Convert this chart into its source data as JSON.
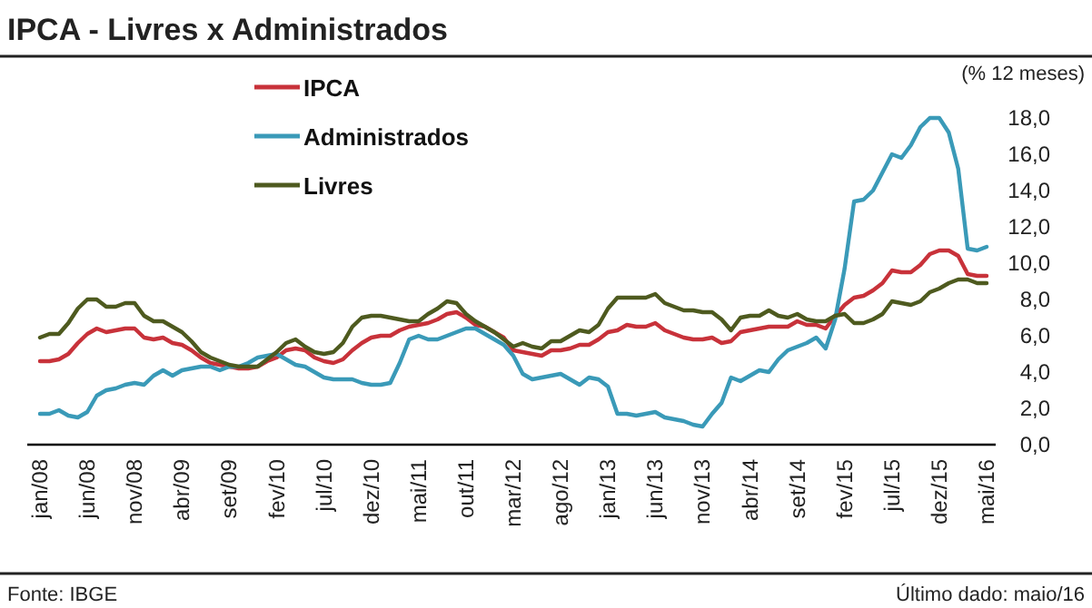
{
  "chart_data": {
    "type": "line",
    "title": "IPCA - Livres x Administrados",
    "ylabel": "(% 12 meses)",
    "annotations": [
      "Fonte: IBGE",
      "Último dado: maio/16"
    ],
    "categories": [
      "jan/08",
      null,
      null,
      null,
      null,
      "jun/08",
      null,
      null,
      null,
      null,
      "nov/08",
      null,
      null,
      null,
      null,
      "abr/09",
      null,
      null,
      null,
      null,
      "set/09",
      null,
      null,
      null,
      null,
      "fev/10",
      null,
      null,
      null,
      null,
      "jul/10",
      null,
      null,
      null,
      null,
      "dez/10",
      null,
      null,
      null,
      null,
      "mai/11",
      null,
      null,
      null,
      null,
      "out/11",
      null,
      null,
      null,
      null,
      "mar/12",
      null,
      null,
      null,
      null,
      "ago/12",
      null,
      null,
      null,
      null,
      "jan/13",
      null,
      null,
      null,
      null,
      "jun/13",
      null,
      null,
      null,
      null,
      "nov/13",
      null,
      null,
      null,
      null,
      "abr/14",
      null,
      null,
      null,
      null,
      "set/14",
      null,
      null,
      null,
      null,
      "fev/15",
      null,
      null,
      null,
      null,
      "jul/15",
      null,
      null,
      null,
      null,
      "dez/15",
      null,
      null,
      null,
      null,
      "mai/16"
    ],
    "series": [
      {
        "name": "IPCA",
        "color": "#c8323a",
        "values": [
          4.6,
          4.6,
          4.7,
          5.0,
          5.6,
          6.1,
          6.4,
          6.2,
          6.3,
          6.4,
          6.4,
          5.9,
          5.8,
          5.9,
          5.6,
          5.5,
          5.2,
          4.8,
          4.5,
          4.4,
          4.3,
          4.2,
          4.2,
          4.3,
          4.6,
          4.8,
          5.2,
          5.3,
          5.2,
          4.8,
          4.6,
          4.5,
          4.7,
          5.2,
          5.6,
          5.9,
          6.0,
          6.0,
          6.3,
          6.5,
          6.6,
          6.7,
          6.9,
          7.2,
          7.3,
          7.0,
          6.6,
          6.5,
          6.2,
          5.9,
          5.2,
          5.1,
          5.0,
          4.9,
          5.2,
          5.2,
          5.3,
          5.5,
          5.5,
          5.8,
          6.2,
          6.3,
          6.6,
          6.5,
          6.5,
          6.7,
          6.3,
          6.1,
          5.9,
          5.8,
          5.8,
          5.9,
          5.6,
          5.7,
          6.2,
          6.3,
          6.4,
          6.5,
          6.5,
          6.5,
          6.8,
          6.6,
          6.6,
          6.4,
          7.1,
          7.7,
          8.1,
          8.2,
          8.5,
          8.9,
          9.6,
          9.5,
          9.5,
          9.9,
          10.5,
          10.7,
          10.7,
          10.4,
          9.4,
          9.3,
          9.3
        ]
      },
      {
        "name": "Administrados",
        "color": "#3a9ab8",
        "values": [
          1.7,
          1.7,
          1.9,
          1.6,
          1.5,
          1.8,
          2.7,
          3.0,
          3.1,
          3.3,
          3.4,
          3.3,
          3.8,
          4.1,
          3.8,
          4.1,
          4.2,
          4.3,
          4.3,
          4.1,
          4.3,
          4.3,
          4.5,
          4.8,
          4.9,
          5.0,
          4.7,
          4.4,
          4.3,
          4.0,
          3.7,
          3.6,
          3.6,
          3.6,
          3.4,
          3.3,
          3.3,
          3.4,
          4.5,
          5.8,
          6.0,
          5.8,
          5.8,
          6.0,
          6.2,
          6.4,
          6.4,
          6.1,
          5.8,
          5.5,
          4.9,
          3.9,
          3.6,
          3.7,
          3.8,
          3.9,
          3.6,
          3.3,
          3.7,
          3.6,
          3.2,
          1.7,
          1.7,
          1.6,
          1.7,
          1.8,
          1.5,
          1.4,
          1.3,
          1.1,
          1.0,
          1.7,
          2.3,
          3.7,
          3.5,
          3.8,
          4.1,
          4.0,
          4.7,
          5.2,
          5.4,
          5.6,
          5.9,
          5.3,
          6.9,
          9.7,
          13.4,
          13.5,
          14.0,
          15.0,
          16.0,
          15.8,
          16.5,
          17.5,
          18.0,
          18.0,
          17.2,
          15.2,
          10.8,
          10.7,
          10.9
        ]
      },
      {
        "name": "Livres",
        "color": "#4e5a1f",
        "values": [
          5.9,
          6.1,
          6.1,
          6.7,
          7.5,
          8.0,
          8.0,
          7.6,
          7.6,
          7.8,
          7.8,
          7.1,
          6.8,
          6.8,
          6.5,
          6.2,
          5.7,
          5.1,
          4.8,
          4.6,
          4.4,
          4.3,
          4.3,
          4.3,
          4.7,
          5.1,
          5.6,
          5.8,
          5.4,
          5.1,
          5.0,
          5.1,
          5.6,
          6.5,
          7.0,
          7.1,
          7.1,
          7.0,
          6.9,
          6.8,
          6.8,
          7.2,
          7.5,
          7.9,
          7.8,
          7.2,
          6.8,
          6.5,
          6.2,
          5.8,
          5.4,
          5.6,
          5.4,
          5.3,
          5.7,
          5.7,
          6.0,
          6.3,
          6.2,
          6.6,
          7.5,
          8.1,
          8.1,
          8.1,
          8.1,
          8.3,
          7.8,
          7.6,
          7.4,
          7.4,
          7.3,
          7.3,
          6.9,
          6.3,
          7.0,
          7.1,
          7.1,
          7.4,
          7.1,
          7.0,
          7.2,
          6.9,
          6.8,
          6.8,
          7.1,
          7.2,
          6.7,
          6.7,
          6.9,
          7.2,
          7.9,
          7.8,
          7.7,
          7.9,
          8.4,
          8.6,
          8.9,
          9.1,
          9.1,
          8.9,
          8.9
        ]
      }
    ],
    "ylim": [
      0,
      18
    ],
    "yticks": [
      {
        "value": 0,
        "label": "0,0"
      },
      {
        "value": 2,
        "label": "2,0"
      },
      {
        "value": 4,
        "label": "4,0"
      },
      {
        "value": 6,
        "label": "6,0"
      },
      {
        "value": 8,
        "label": "8,0"
      },
      {
        "value": 10,
        "label": "10,0"
      },
      {
        "value": 12,
        "label": "12,0"
      },
      {
        "value": 14,
        "label": "14,0"
      },
      {
        "value": 16,
        "label": "16,0"
      },
      {
        "value": 18,
        "label": "18,0"
      }
    ],
    "grid": false,
    "legend": "top left",
    "marker": "none",
    "line_style": "solid"
  }
}
